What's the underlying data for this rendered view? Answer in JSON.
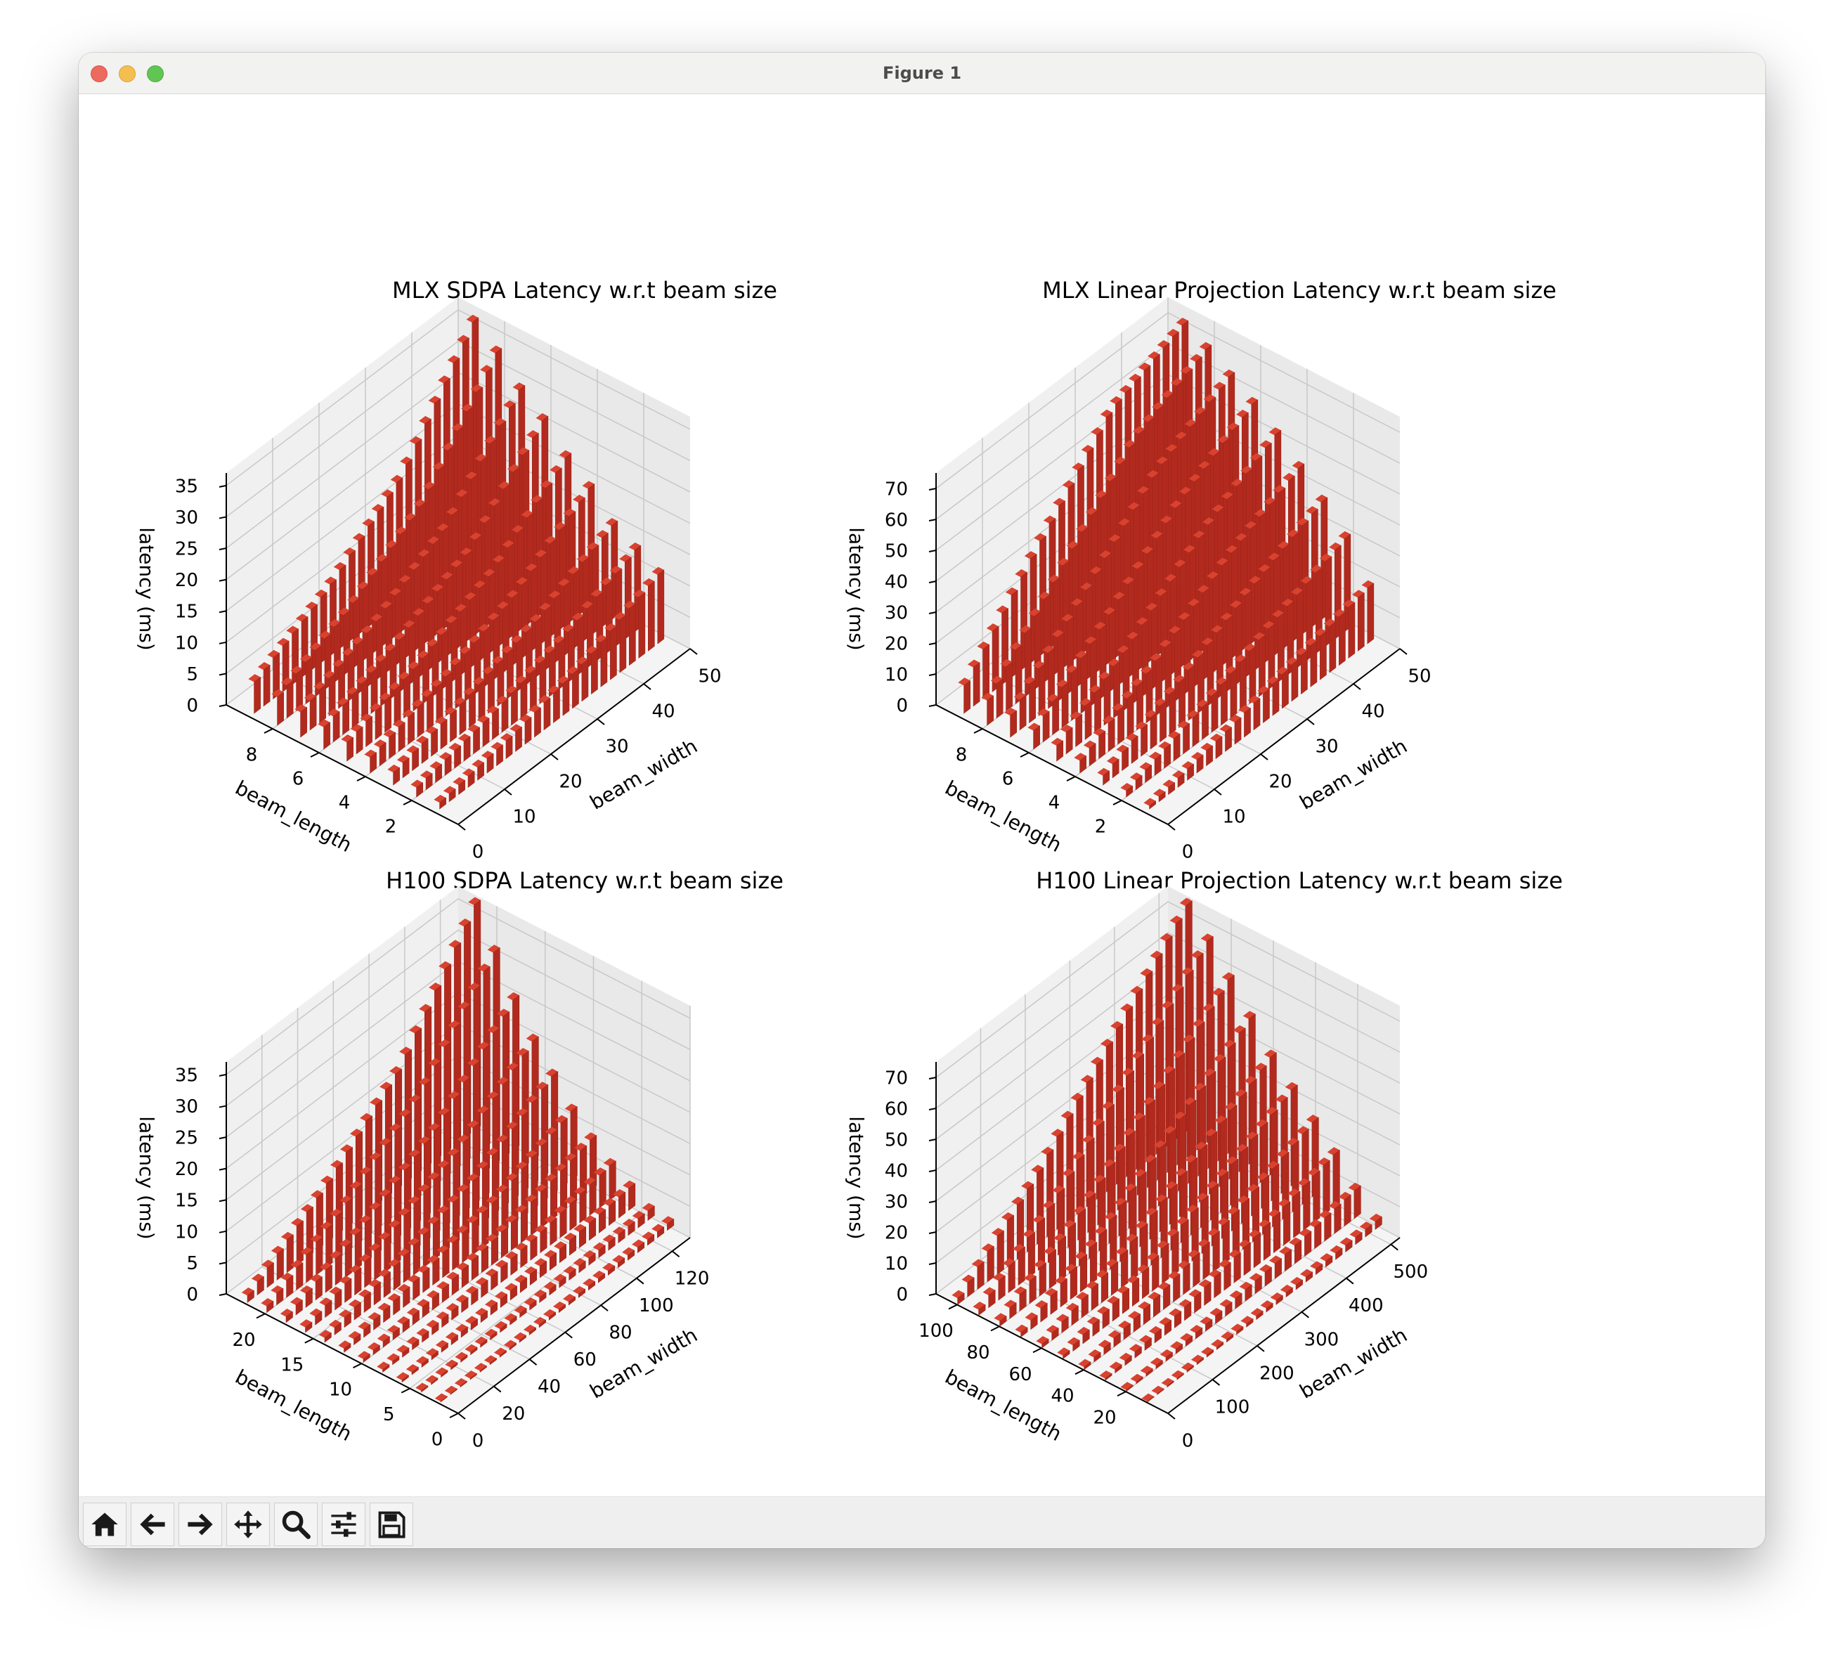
{
  "window": {
    "title": "Figure 1"
  },
  "toolbar": [
    {
      "name": "home-icon"
    },
    {
      "name": "back-icon"
    },
    {
      "name": "forward-icon"
    },
    {
      "name": "pan-icon"
    },
    {
      "name": "zoom-icon"
    },
    {
      "name": "configure-subplots-icon"
    },
    {
      "name": "save-icon"
    }
  ],
  "colors": {
    "bar": "#b22a1e",
    "bar_top": "#d8422f",
    "bar_side": "#8f1f16",
    "grid": "#c8c8c8",
    "pane": "#f4f4f4"
  },
  "chart_data": [
    {
      "type": "bar3d",
      "title": "MLX SDPA Latency w.r.t beam size",
      "xlabel": "beam_width",
      "ylabel": "beam_length",
      "zlabel": "latency (ms)",
      "xticks": [
        0,
        10,
        20,
        30,
        40,
        50
      ],
      "yticks": [
        2,
        4,
        6,
        8
      ],
      "zticks": [
        0,
        5,
        10,
        15,
        20,
        25,
        30,
        35
      ],
      "xlim": [
        0,
        50
      ],
      "ylim": [
        0,
        10
      ],
      "zlim": [
        0,
        37
      ],
      "series": [
        {
          "beam_length": 1,
          "values": [
            1.0,
            3.0,
            6.0,
            11.0
          ]
        },
        {
          "beam_length": 2,
          "values": [
            1.5,
            4.0,
            7.5,
            13.0
          ]
        },
        {
          "beam_length": 3,
          "values": [
            2.0,
            5.0,
            9.0,
            15.0
          ]
        },
        {
          "beam_length": 4,
          "values": [
            2.5,
            6.0,
            11.0,
            19.0
          ]
        },
        {
          "beam_length": 5,
          "values": [
            3.0,
            7.0,
            12.5,
            22.0
          ]
        },
        {
          "beam_length": 6,
          "values": [
            3.5,
            8.0,
            14.0,
            26.0
          ]
        },
        {
          "beam_length": 7,
          "values": [
            4.0,
            9.0,
            16.0,
            29.0
          ]
        },
        {
          "beam_length": 8,
          "values": [
            4.5,
            10.0,
            18.0,
            33.0
          ]
        },
        {
          "beam_length": 9,
          "values": [
            5.0,
            11.0,
            20.0,
            36.0
          ]
        }
      ],
      "beam_width_range": [
        1,
        48
      ]
    },
    {
      "type": "bar3d",
      "title": "MLX Linear Projection Latency w.r.t beam size",
      "xlabel": "beam_width",
      "ylabel": "beam_length",
      "zlabel": "latency (ms)",
      "xticks": [
        0,
        10,
        20,
        30,
        40,
        50
      ],
      "yticks": [
        2,
        4,
        6,
        8
      ],
      "zticks": [
        0,
        10,
        20,
        30,
        40,
        50,
        60,
        70
      ],
      "xlim": [
        0,
        50
      ],
      "ylim": [
        0,
        10
      ],
      "zlim": [
        0,
        75
      ],
      "series": [
        {
          "beam_length": 1,
          "values": [
            1,
            6,
            12,
            18
          ]
        },
        {
          "beam_length": 2,
          "values": [
            2,
            10,
            20,
            30
          ]
        },
        {
          "beam_length": 3,
          "values": [
            3,
            14,
            27,
            38
          ]
        },
        {
          "beam_length": 4,
          "values": [
            4,
            17,
            33,
            45
          ]
        },
        {
          "beam_length": 5,
          "values": [
            5,
            20,
            38,
            52
          ]
        },
        {
          "beam_length": 6,
          "values": [
            6,
            24,
            44,
            58
          ]
        },
        {
          "beam_length": 7,
          "values": [
            7,
            28,
            50,
            63
          ]
        },
        {
          "beam_length": 8,
          "values": [
            8,
            32,
            56,
            68
          ]
        },
        {
          "beam_length": 9,
          "values": [
            9,
            36,
            62,
            72
          ]
        }
      ],
      "beam_width_range": [
        1,
        48
      ]
    },
    {
      "type": "bar3d",
      "title": "H100 SDPA Latency w.r.t beam size",
      "xlabel": "beam_width",
      "ylabel": "beam_length",
      "zlabel": "latency (ms)",
      "xticks": [
        0,
        20,
        40,
        60,
        80,
        100,
        120
      ],
      "yticks": [
        0,
        5,
        10,
        15,
        20
      ],
      "zticks": [
        0,
        5,
        10,
        15,
        20,
        25,
        30,
        35
      ],
      "xlim": [
        0,
        130
      ],
      "ylim": [
        0,
        24
      ],
      "zlim": [
        0,
        37
      ],
      "series": [
        {
          "beam_length": 2,
          "values": [
            0.1,
            0.3,
            0.6,
            1.0
          ]
        },
        {
          "beam_length": 4,
          "values": [
            0.2,
            0.5,
            1.0,
            1.5
          ]
        },
        {
          "beam_length": 6,
          "values": [
            0.3,
            1.0,
            2.0,
            3.5
          ]
        },
        {
          "beam_length": 8,
          "values": [
            0.4,
            1.5,
            3.0,
            5.5
          ]
        },
        {
          "beam_length": 10,
          "values": [
            0.5,
            2.0,
            4.5,
            8.0
          ]
        },
        {
          "beam_length": 12,
          "values": [
            0.6,
            3.0,
            6.0,
            11.0
          ]
        },
        {
          "beam_length": 14,
          "values": [
            0.7,
            4.0,
            8.0,
            15.0
          ]
        },
        {
          "beam_length": 16,
          "values": [
            0.8,
            5.0,
            10.5,
            19.0
          ]
        },
        {
          "beam_length": 18,
          "values": [
            0.9,
            6.0,
            13.0,
            24.0
          ]
        },
        {
          "beam_length": 20,
          "values": [
            1.0,
            7.5,
            16.0,
            30.0
          ]
        },
        {
          "beam_length": 22,
          "values": [
            1.1,
            9.0,
            19.0,
            36.0
          ]
        }
      ],
      "beam_width_range": [
        1,
        128
      ]
    },
    {
      "type": "bar3d",
      "title": "H100 Linear Projection Latency w.r.t beam size",
      "xlabel": "beam_width",
      "ylabel": "beam_length",
      "zlabel": "latency (ms)",
      "xticks": [
        0,
        100,
        200,
        300,
        400,
        500
      ],
      "yticks": [
        20,
        40,
        60,
        80,
        100
      ],
      "zticks": [
        0,
        10,
        20,
        30,
        40,
        50,
        60,
        70
      ],
      "xlim": [
        0,
        520
      ],
      "ylim": [
        0,
        110
      ],
      "zlim": [
        0,
        75
      ],
      "series": [
        {
          "beam_length": 10,
          "values": [
            0.2,
            0.8,
            1.5,
            2.5
          ]
        },
        {
          "beam_length": 20,
          "values": [
            0.4,
            2.0,
            5.0,
            9.0
          ]
        },
        {
          "beam_length": 30,
          "values": [
            0.6,
            4.0,
            10.0,
            17.0
          ]
        },
        {
          "beam_length": 40,
          "values": [
            0.8,
            6.0,
            14.0,
            24.0
          ]
        },
        {
          "beam_length": 50,
          "values": [
            1.0,
            8.0,
            19.0,
            31.0
          ]
        },
        {
          "beam_length": 60,
          "values": [
            1.2,
            10.0,
            24.0,
            38.0
          ]
        },
        {
          "beam_length": 70,
          "values": [
            1.4,
            13.0,
            30.0,
            47.0
          ]
        },
        {
          "beam_length": 80,
          "values": [
            1.6,
            16.0,
            36.0,
            56.0
          ]
        },
        {
          "beam_length": 90,
          "values": [
            1.8,
            19.0,
            42.0,
            65.0
          ]
        },
        {
          "beam_length": 100,
          "values": [
            2.0,
            22.0,
            48.0,
            73.0
          ]
        }
      ],
      "beam_width_range": [
        1,
        512
      ]
    }
  ]
}
